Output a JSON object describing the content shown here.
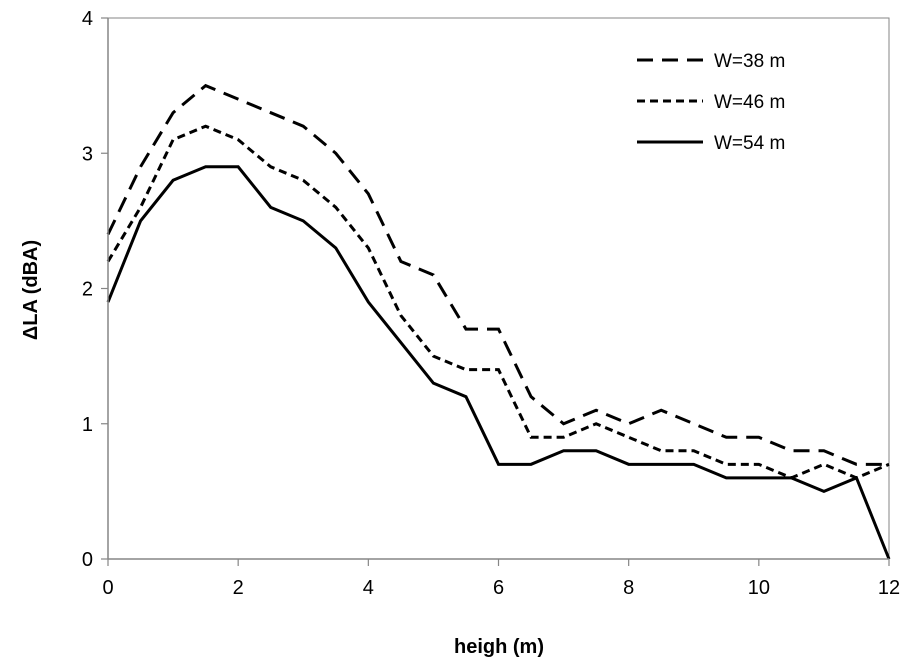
{
  "chart_data": {
    "type": "line",
    "title": "",
    "xlabel": "heigh (m)",
    "ylabel": "ΔLA (dBA)",
    "xlim": [
      0,
      12
    ],
    "ylim": [
      0,
      4
    ],
    "x_ticks": [
      "0",
      "2",
      "4",
      "6",
      "8",
      "10",
      "12"
    ],
    "y_ticks": [
      "0",
      "1",
      "2",
      "3",
      "4"
    ],
    "grid": false,
    "legend_position": "top-right",
    "x": [
      0,
      0.5,
      1,
      1.5,
      2,
      2.5,
      3,
      3.5,
      4,
      4.5,
      5,
      5.5,
      6,
      6.5,
      7,
      7.5,
      8,
      8.5,
      9,
      9.5,
      10,
      10.5,
      11,
      11.5,
      12
    ],
    "series": [
      {
        "name": "W=38 m",
        "style": "long-dash",
        "color": "#000000",
        "values": [
          2.4,
          2.9,
          3.3,
          3.5,
          3.4,
          3.3,
          3.2,
          3.0,
          2.7,
          2.2,
          2.1,
          1.7,
          1.7,
          1.2,
          1.0,
          1.1,
          1.0,
          1.1,
          1.0,
          0.9,
          0.9,
          0.8,
          0.8,
          0.7,
          0.7
        ]
      },
      {
        "name": "W=46 m",
        "style": "short-dash",
        "color": "#000000",
        "values": [
          2.2,
          2.6,
          3.1,
          3.2,
          3.1,
          2.9,
          2.8,
          2.6,
          2.3,
          1.8,
          1.5,
          1.4,
          1.4,
          0.9,
          0.9,
          1.0,
          0.9,
          0.8,
          0.8,
          0.7,
          0.7,
          0.6,
          0.7,
          0.6,
          0.7
        ]
      },
      {
        "name": "W=54 m",
        "style": "solid",
        "color": "#000000",
        "values": [
          1.9,
          2.5,
          2.8,
          2.9,
          2.9,
          2.6,
          2.5,
          2.3,
          1.9,
          1.6,
          1.3,
          1.2,
          0.7,
          0.7,
          0.8,
          0.8,
          0.7,
          0.7,
          0.7,
          0.6,
          0.6,
          0.6,
          0.5,
          0.6,
          0.0
        ]
      }
    ]
  }
}
